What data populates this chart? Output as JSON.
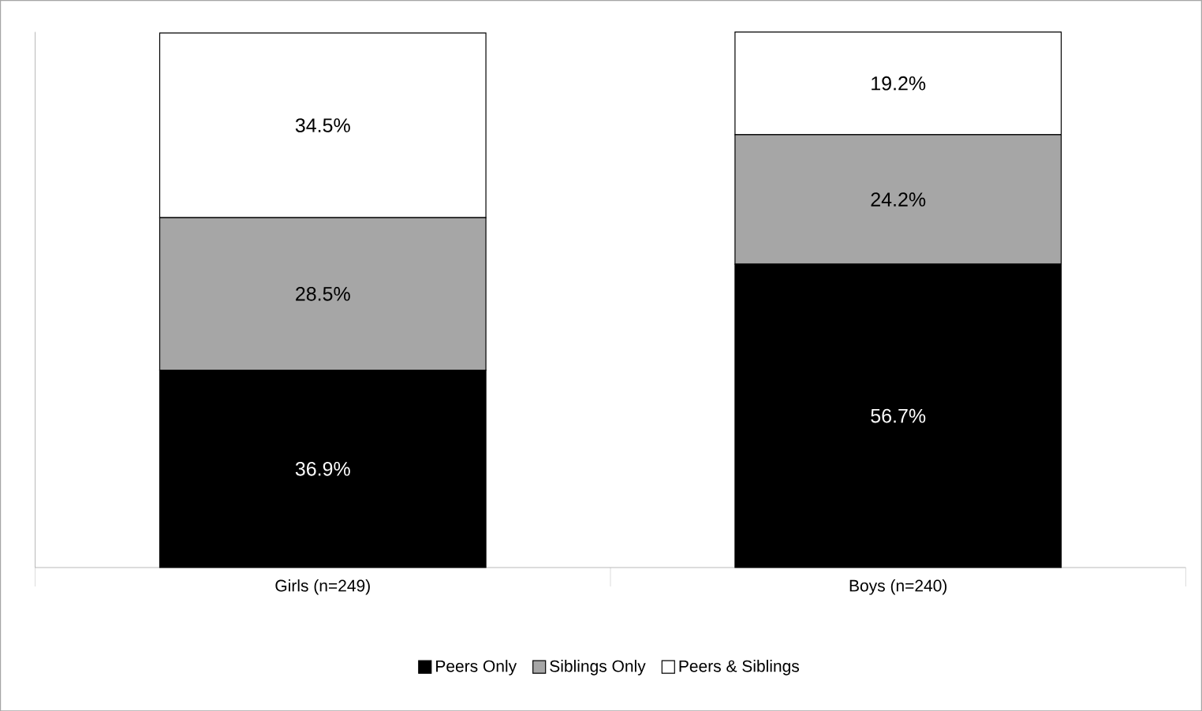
{
  "chart_data": {
    "type": "bar",
    "stacked": true,
    "legend": "bottom",
    "categories": [
      "Girls (n=249)",
      "Boys (n=240)"
    ],
    "series": [
      {
        "name": "Peers Only",
        "color": "#000000",
        "values": [
          36.9,
          56.7
        ],
        "value_labels": [
          "36.9%",
          "56.7%"
        ]
      },
      {
        "name": "Siblings Only",
        "color": "#a6a6a6",
        "values": [
          28.5,
          24.2
        ],
        "value_labels": [
          "28.5%",
          "24.2%"
        ]
      },
      {
        "name": "Peers & Siblings",
        "color": "#ffffff",
        "values": [
          34.5,
          19.2
        ],
        "value_labels": [
          "34.5%",
          "19.2%"
        ]
      }
    ]
  }
}
